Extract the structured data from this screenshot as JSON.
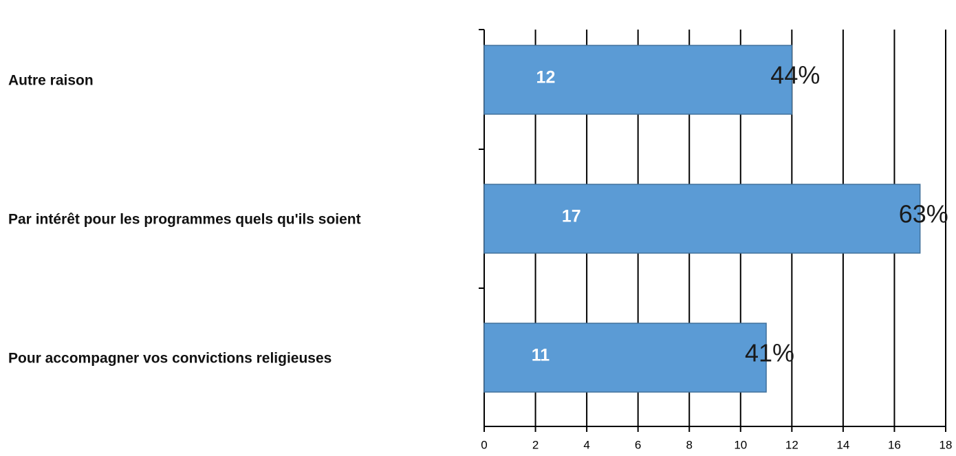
{
  "chart_data": {
    "type": "barh",
    "categories": [
      "Autre raison",
      "Par intérêt pour les programmes quels qu'ils soient",
      "Pour accompagner vos convictions religieuses"
    ],
    "values": [
      12,
      17,
      11
    ],
    "color": "#5b9bd5",
    "percentages": {
      "values": [
        44,
        63,
        41
      ],
      "value_labels": [
        "44%",
        "63%",
        "41%"
      ]
    },
    "xlim": [
      0,
      18
    ],
    "xticks": [
      0,
      2,
      4,
      6,
      8,
      10,
      12,
      14,
      16,
      18
    ],
    "grid": true
  }
}
